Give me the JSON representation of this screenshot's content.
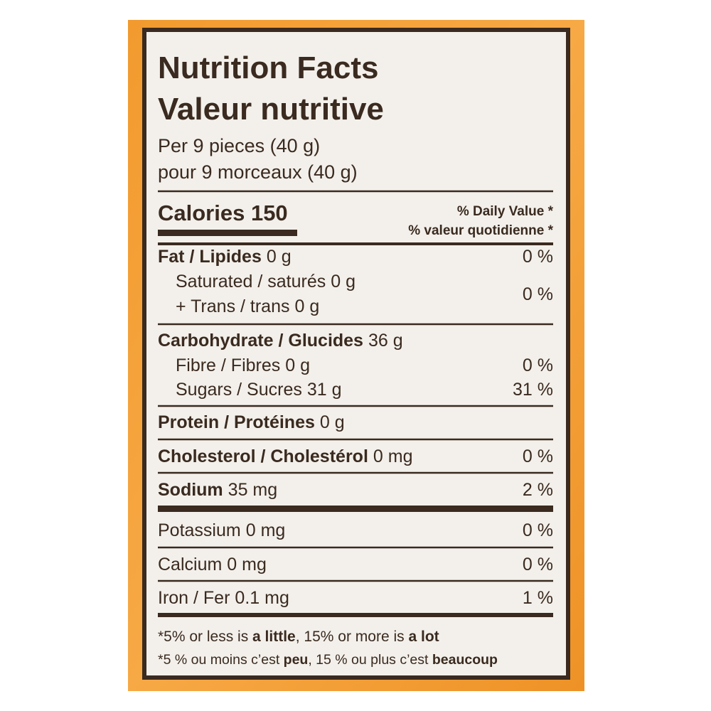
{
  "title": [
    "Nutrition Facts",
    "Valeur nutritive"
  ],
  "serving": [
    "Per 9 pieces (40 g)",
    "pour 9 morceaux (40 g)"
  ],
  "calories": "Calories 150",
  "daily_value_header": [
    "% Daily Value *",
    "% valeur quotidienne *"
  ],
  "nutrients": [
    {
      "name": "Fat / Lipides",
      "amount": "0 g",
      "dv": "0 %"
    },
    {
      "lines": [
        {
          "name": "Saturated / saturés",
          "amount": "0 g"
        },
        {
          "name": "+ Trans / trans",
          "amount": "0 g"
        }
      ],
      "dv": "0 %"
    },
    {
      "name": "Carbohydrate / Glucides",
      "amount": "36 g"
    },
    {
      "name": "Fibre / Fibres",
      "amount": "0 g",
      "dv": "0 %"
    },
    {
      "name": "Sugars / Sucres",
      "amount": "31 g",
      "dv": "31 %"
    },
    {
      "name": "Protein / Protéines",
      "amount": "0 g"
    },
    {
      "name": "Cholesterol / Cholestérol",
      "amount": "0 mg",
      "dv": "0 %"
    },
    {
      "name": "Sodium",
      "amount": "35 mg",
      "dv": "2 %"
    },
    {
      "name": "Potassium",
      "amount": "0 mg",
      "dv": "0 %"
    },
    {
      "name": "Calcium",
      "amount": "0 mg",
      "dv": "0 %"
    },
    {
      "name": "Iron / Fer",
      "amount": "0.1 mg",
      "dv": "1 %"
    }
  ],
  "footnotes": [
    [
      "*5% or less is ",
      "a little",
      ", 15% or more is ",
      "a lot"
    ],
    [
      "*5 % ou moins c’est ",
      "peu",
      ", 15 % ou plus c’est ",
      "beaucoup"
    ]
  ]
}
